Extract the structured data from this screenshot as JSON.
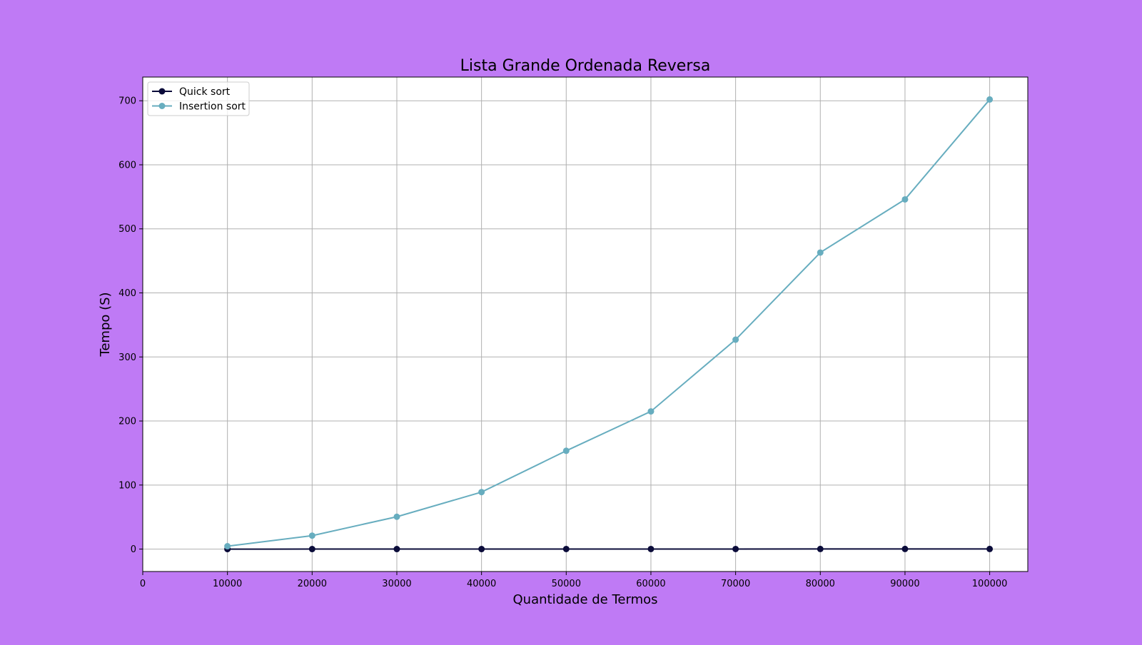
{
  "colors": {
    "background": "#bf7af5",
    "plot_background": "#ffffff",
    "grid": "#b0b0b0",
    "quick_sort": "#0b0c3a",
    "insertion_sort": "#67adbf"
  },
  "chart_data": {
    "type": "line",
    "title": "Lista Grande Ordenada Reversa",
    "xlabel": "Quantidade de Termos",
    "ylabel": "Tempo (S)",
    "xlim": [
      0,
      104500
    ],
    "ylim": [
      -35,
      737
    ],
    "x_ticks": [
      0,
      10000,
      20000,
      30000,
      40000,
      50000,
      60000,
      70000,
      80000,
      90000,
      100000
    ],
    "y_ticks": [
      0,
      100,
      200,
      300,
      400,
      500,
      600,
      700
    ],
    "grid": true,
    "legend_position": "top-left",
    "x": [
      10000,
      20000,
      30000,
      40000,
      50000,
      60000,
      70000,
      80000,
      90000,
      100000
    ],
    "series": [
      {
        "name": "Quick sort",
        "color": "#0b0c3a",
        "values": [
          0.01,
          0.03,
          0.05,
          0.08,
          0.1,
          0.12,
          0.15,
          0.17,
          0.2,
          0.22
        ]
      },
      {
        "name": "Insertion sort",
        "color": "#67adbf",
        "values": [
          4.5,
          21,
          50.5,
          89,
          153.5,
          215,
          327,
          463,
          546,
          702
        ]
      }
    ]
  }
}
